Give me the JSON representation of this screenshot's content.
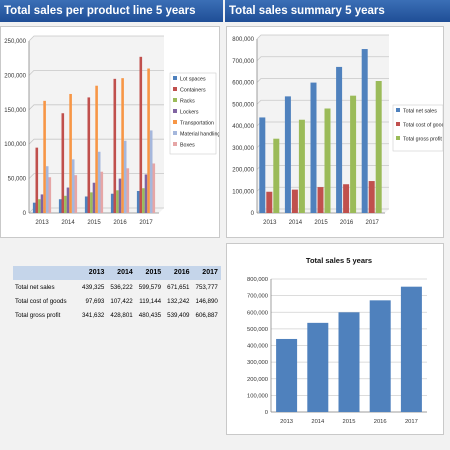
{
  "headers": {
    "left": "Total sales per product line 5 years",
    "right": "Total sales summary 5 years"
  },
  "summary_table": {
    "columns": [
      "2013",
      "2014",
      "2015",
      "2016",
      "2017"
    ],
    "rows": [
      {
        "label": "Total net sales",
        "values": [
          "439,325",
          "536,222",
          "599,579",
          "671,651",
          "753,777"
        ]
      },
      {
        "label": "Total cost of goods",
        "values": [
          "97,693",
          "107,422",
          "119,144",
          "132,242",
          "146,890"
        ]
      },
      {
        "label": "Total gross profit",
        "values": [
          "341,632",
          "428,801",
          "480,435",
          "539,409",
          "606,887"
        ]
      }
    ]
  },
  "chart_data": [
    {
      "type": "bar",
      "categories": [
        "2013",
        "2014",
        "2015",
        "2016",
        "2017"
      ],
      "ylim": [
        0,
        250000
      ],
      "yticks": [
        "0",
        "50,000",
        "100,000",
        "150,000",
        "200,000",
        "250,000"
      ],
      "legend_position": "right",
      "grid": true,
      "series": [
        {
          "name": "Lot spaces",
          "color": "#4f81bd",
          "values": [
            15000,
            20000,
            24000,
            28000,
            32000
          ]
        },
        {
          "name": "Containers",
          "color": "#c0504d",
          "values": [
            95000,
            145000,
            168000,
            195000,
            227000
          ]
        },
        {
          "name": "Racks",
          "color": "#9bbb59",
          "values": [
            20000,
            25000,
            30000,
            33000,
            36000
          ]
        },
        {
          "name": "Lockers",
          "color": "#8064a2",
          "values": [
            27000,
            37000,
            44000,
            50000,
            56000
          ]
        },
        {
          "name": "Transportation",
          "color": "#f79646",
          "values": [
            163000,
            173000,
            185000,
            196000,
            210000
          ]
        },
        {
          "name": "Material handling",
          "color": "#a5b7dc",
          "values": [
            68000,
            78000,
            89000,
            105000,
            120000
          ]
        },
        {
          "name": "Boxes",
          "color": "#e6a6a6",
          "values": [
            52000,
            55000,
            60000,
            65000,
            72000
          ]
        }
      ]
    },
    {
      "type": "bar",
      "categories": [
        "2013",
        "2014",
        "2015",
        "2016",
        "2017"
      ],
      "ylim": [
        0,
        800000
      ],
      "yticks": [
        "0",
        "100,000",
        "200,000",
        "300,000",
        "400,000",
        "500,000",
        "600,000",
        "700,000",
        "800,000"
      ],
      "legend_position": "right",
      "grid": true,
      "series": [
        {
          "name": "Total net sales",
          "color": "#4f81bd",
          "values": [
            439325,
            536222,
            599579,
            671651,
            753777
          ]
        },
        {
          "name": "Total cost of goods",
          "color": "#c0504d",
          "values": [
            97693,
            107422,
            119144,
            132242,
            146890
          ]
        },
        {
          "name": "Total gross profit",
          "color": "#9bbb59",
          "values": [
            341632,
            428801,
            480435,
            539409,
            606887
          ]
        }
      ]
    },
    {
      "type": "bar",
      "title": "Total sales 5 years",
      "categories": [
        "2013",
        "2014",
        "2015",
        "2016",
        "2017"
      ],
      "ylim": [
        0,
        800000
      ],
      "yticks": [
        "0",
        "100,000",
        "200,000",
        "300,000",
        "400,000",
        "500,000",
        "600,000",
        "700,000",
        "800,000"
      ],
      "grid": true,
      "series": [
        {
          "color": "#4f81bd",
          "values": [
            439325,
            536222,
            599579,
            671651,
            753777
          ]
        }
      ]
    }
  ]
}
